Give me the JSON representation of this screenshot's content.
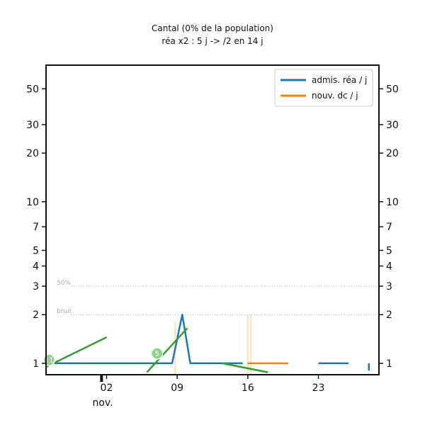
{
  "chart_data": {
    "type": "line",
    "title": "Cantal (0% de la population)",
    "subtitle": "réa x2 : 5 j -> /2 en 14 j",
    "xlabel": "nov.",
    "ylabel": "",
    "yscale": "log",
    "ylim": [
      0.85,
      70
    ],
    "xlim": [
      -4,
      29
    ],
    "y_ticks": [
      1,
      2,
      3,
      4,
      5,
      7,
      10,
      20,
      30,
      50
    ],
    "y_tick_labels": [
      "1",
      "2",
      "3",
      "4",
      "5",
      "7",
      "10",
      "20",
      "30",
      "50"
    ],
    "x_ticks": [
      2,
      9,
      16,
      23
    ],
    "x_tick_labels": [
      "02",
      "09",
      "16",
      "23"
    ],
    "grid": false,
    "legend_position": "top-right",
    "reference_lines": [
      {
        "label": "50%",
        "y": 3
      },
      {
        "label": "bruit",
        "y": 2
      }
    ],
    "series": [
      {
        "name": "admis. réa / j",
        "color": "#1f77b4",
        "segments": [
          [
            [
              -4,
              1
            ],
            [
              0,
              1
            ],
            [
              3,
              1
            ],
            [
              6,
              1
            ],
            [
              8.5,
              1
            ],
            [
              9.5,
              2
            ],
            [
              10.3,
              1
            ],
            [
              13.5,
              1
            ],
            [
              15.5,
              1
            ]
          ],
          [
            [
              23,
              1
            ],
            [
              26,
              1
            ]
          ],
          [
            [
              28,
              1
            ],
            [
              28,
              0.9
            ]
          ]
        ]
      },
      {
        "name": "nouv. dc / j",
        "color": "#ff7f0e",
        "segments": [
          [
            [
              16,
              1
            ],
            [
              20,
              1
            ]
          ]
        ]
      },
      {
        "name": "",
        "color": "#2ca02c",
        "segments": [
          [
            [
              -4,
              0.95
            ],
            [
              2,
              1.45
            ]
          ],
          [
            [
              6,
              0.88
            ],
            [
              10,
              1.65
            ]
          ],
          [
            [
              13.5,
              1
            ],
            [
              18,
              0.88
            ]
          ]
        ]
      }
    ],
    "vertical_spans": [
      {
        "x": 16,
        "y": 2,
        "color": "#ffe0b0"
      },
      {
        "x": 16.3,
        "y": 2,
        "color": "#ffe0b0"
      },
      {
        "x": 8.8,
        "y": 1.8,
        "color": "#ffe0b0"
      }
    ],
    "annotations": [
      {
        "label": "11",
        "x": -3.7,
        "y": 1.05,
        "color": "#2ca02c"
      },
      {
        "label": "5",
        "x": 7,
        "y": 1.15,
        "color": "#2ca02c"
      }
    ],
    "marker": {
      "x": 1.5
    }
  }
}
